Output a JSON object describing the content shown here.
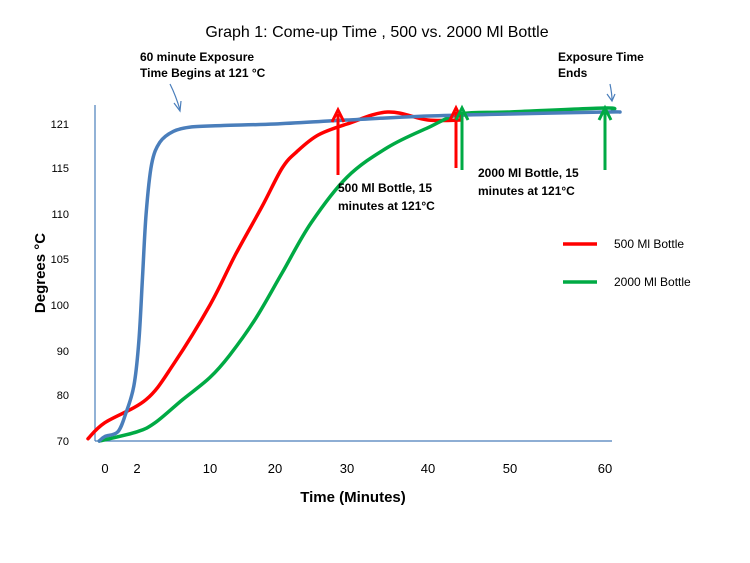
{
  "chart_data": {
    "type": "line",
    "title": "Graph 1: Come-up Time , 500 vs. 2000 Ml Bottle",
    "xlabel": "Time (Minutes)",
    "ylabel": "Degrees  °C",
    "x_ticks": [
      "0",
      "2",
      "10",
      "20",
      "30",
      "40",
      "50",
      "60"
    ],
    "y_ticks": [
      "70",
      "80",
      "90",
      "100",
      "105",
      "110",
      "115",
      "121"
    ],
    "legend_position": "right",
    "series": [
      {
        "name": "",
        "color": "#4a7ebb",
        "points": [
          [
            -1,
            70
          ],
          [
            0,
            71
          ],
          [
            0.8,
            72
          ],
          [
            1.3,
            76
          ],
          [
            1.8,
            82
          ],
          [
            2.2,
            92
          ],
          [
            2.6,
            103
          ],
          [
            3,
            110
          ],
          [
            3.6,
            115.5
          ],
          [
            4.5,
            118.5
          ],
          [
            6,
            120
          ],
          [
            8,
            120.6
          ],
          [
            12,
            120.8
          ],
          [
            20,
            121
          ],
          [
            30,
            121.2
          ],
          [
            40,
            121.4
          ],
          [
            50,
            121.5
          ],
          [
            60,
            121.6
          ],
          [
            62,
            121.6
          ]
        ]
      },
      {
        "name": "500 Ml Bottle",
        "color": "#ff0000",
        "points": [
          [
            -3,
            70.5
          ],
          [
            0,
            74
          ],
          [
            3,
            79
          ],
          [
            6,
            87
          ],
          [
            10,
            100
          ],
          [
            14,
            105.6
          ],
          [
            18,
            110.8
          ],
          [
            21,
            115
          ],
          [
            23,
            117.2
          ],
          [
            26,
            119.5
          ],
          [
            30,
            121
          ],
          [
            35,
            121.6
          ],
          [
            40,
            121.2
          ],
          [
            44,
            121.2
          ]
        ]
      },
      {
        "name": "2000 Ml Bottle",
        "color": "#00aa44",
        "points": [
          [
            -1,
            70
          ],
          [
            2,
            72
          ],
          [
            4,
            74
          ],
          [
            7,
            79
          ],
          [
            10,
            84
          ],
          [
            13,
            89
          ],
          [
            17,
            97
          ],
          [
            21,
            103.5
          ],
          [
            25,
            109
          ],
          [
            30,
            114
          ],
          [
            35,
            117.8
          ],
          [
            40,
            120.5
          ],
          [
            44,
            121.5
          ],
          [
            50,
            121.6
          ],
          [
            60,
            121.8
          ],
          [
            61,
            121.7
          ]
        ]
      }
    ],
    "annotations": [
      {
        "lines": [
          "60 minute Exposure",
          "Time Begins at 121 °C"
        ],
        "color": "#4a7ebb"
      },
      {
        "lines": [
          "Exposure Time",
          "Ends"
        ],
        "color": "#4a7ebb"
      },
      {
        "lines": [
          "500 Ml Bottle, 15",
          "minutes at 121°C"
        ],
        "color": "#ff0000"
      },
      {
        "lines": [
          "2000 Ml Bottle, 15",
          "minutes at 121°C"
        ],
        "color": "#00aa44"
      }
    ]
  }
}
